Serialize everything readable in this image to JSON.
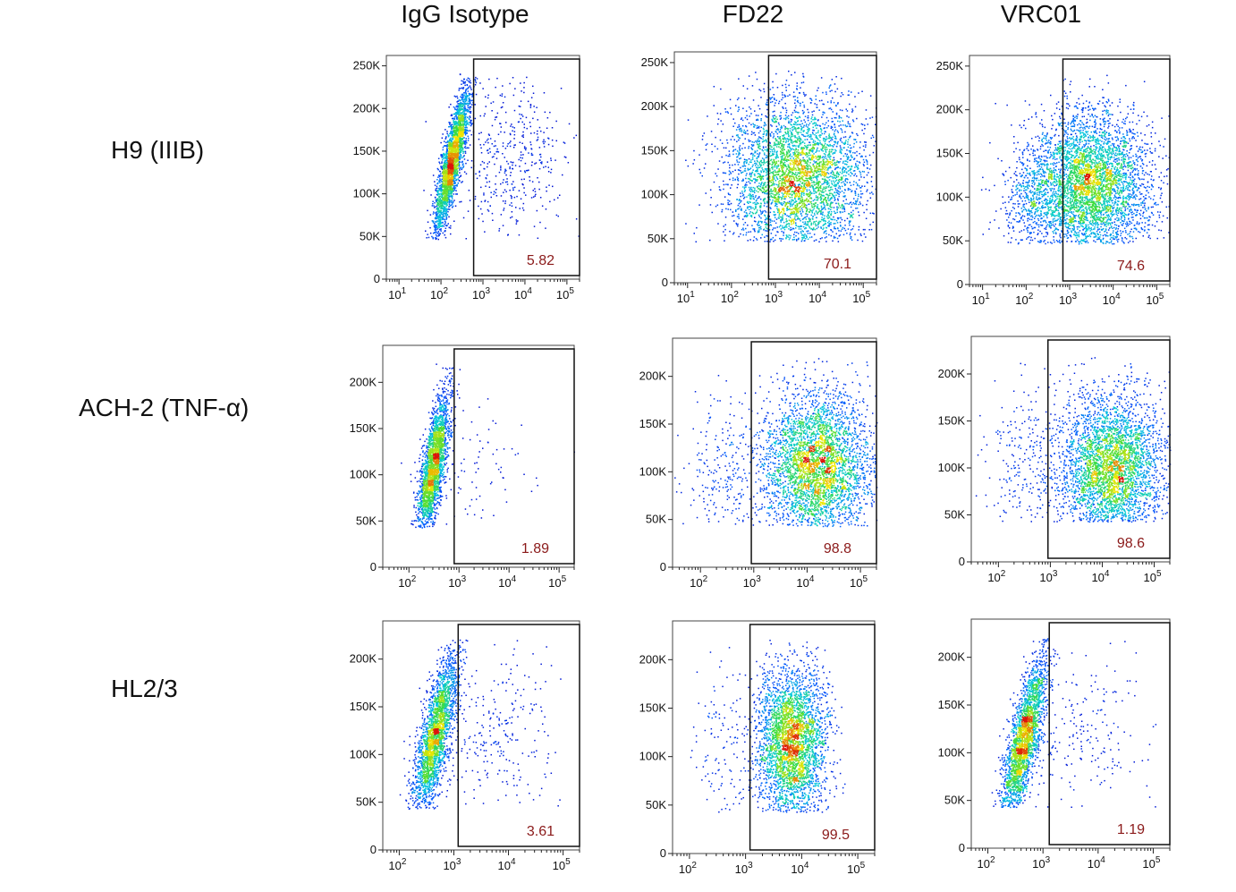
{
  "columns": [
    "IgG Isotype",
    "FD22",
    "VRC01"
  ],
  "rows": [
    "H9 (IIIB)",
    "ACH-2 (TNF-α)",
    "HL2/3"
  ],
  "chart_data": [
    {
      "type": "scatter",
      "row": "H9 (IIIB)",
      "column": "IgG Isotype",
      "x_scale": "log",
      "xlim": [
        5,
        200000
      ],
      "ylim": [
        0,
        262144
      ],
      "y_ticks": [
        {
          "v": 0,
          "label": "0"
        },
        {
          "v": 50000,
          "label": "50K"
        },
        {
          "v": 100000,
          "label": "100K"
        },
        {
          "v": 150000,
          "label": "150K"
        },
        {
          "v": 200000,
          "label": "200K"
        },
        {
          "v": 250000,
          "label": "250K"
        }
      ],
      "x_ticks": [
        {
          "v": 10,
          "label": "10",
          "exp": "1"
        },
        {
          "v": 100,
          "label": "10",
          "exp": "2"
        },
        {
          "v": 1000,
          "label": "10",
          "exp": "3"
        },
        {
          "v": 10000,
          "label": "10",
          "exp": "4"
        },
        {
          "v": 100000,
          "label": "10",
          "exp": "5"
        }
      ],
      "gate": {
        "x_min": 600,
        "percent": "5.82"
      },
      "populations": [
        {
          "x_center": 180,
          "y_center": 140000,
          "x_log_sd": 0.22,
          "y_sd": 45000,
          "tilt": 0.85,
          "n": 2600
        },
        {
          "x_center": 5000,
          "y_center": 140000,
          "x_log_sd": 0.6,
          "y_sd": 50000,
          "tilt": 0,
          "n": 450
        }
      ]
    },
    {
      "type": "scatter",
      "row": "H9 (IIIB)",
      "column": "FD22",
      "x_scale": "log",
      "xlim": [
        5,
        200000
      ],
      "ylim": [
        0,
        262144
      ],
      "y_ticks": [
        {
          "v": 0,
          "label": "0"
        },
        {
          "v": 50000,
          "label": "50K"
        },
        {
          "v": 100000,
          "label": "100K"
        },
        {
          "v": 150000,
          "label": "150K"
        },
        {
          "v": 200000,
          "label": "200K"
        },
        {
          "v": 250000,
          "label": "250K"
        }
      ],
      "x_ticks": [
        {
          "v": 10,
          "label": "10",
          "exp": "1"
        },
        {
          "v": 100,
          "label": "10",
          "exp": "2"
        },
        {
          "v": 1000,
          "label": "10",
          "exp": "3"
        },
        {
          "v": 10000,
          "label": "10",
          "exp": "4"
        },
        {
          "v": 100000,
          "label": "10",
          "exp": "5"
        }
      ],
      "gate": {
        "x_min": 700,
        "percent": "70.1"
      },
      "populations": [
        {
          "x_center": 3000,
          "y_center": 120000,
          "x_log_sd": 0.8,
          "y_sd": 45000,
          "tilt": 0,
          "n": 4200
        }
      ]
    },
    {
      "type": "scatter",
      "row": "H9 (IIIB)",
      "column": "VRC01",
      "x_scale": "log",
      "xlim": [
        5,
        200000
      ],
      "ylim": [
        0,
        262144
      ],
      "y_ticks": [
        {
          "v": 0,
          "label": "0"
        },
        {
          "v": 50000,
          "label": "50K"
        },
        {
          "v": 100000,
          "label": "100K"
        },
        {
          "v": 150000,
          "label": "150K"
        },
        {
          "v": 200000,
          "label": "200K"
        },
        {
          "v": 250000,
          "label": "250K"
        }
      ],
      "x_ticks": [
        {
          "v": 10,
          "label": "10",
          "exp": "1"
        },
        {
          "v": 100,
          "label": "10",
          "exp": "2"
        },
        {
          "v": 1000,
          "label": "10",
          "exp": "3"
        },
        {
          "v": 10000,
          "label": "10",
          "exp": "4"
        },
        {
          "v": 100000,
          "label": "10",
          "exp": "5"
        }
      ],
      "gate": {
        "x_min": 700,
        "percent": "74.6"
      },
      "populations": [
        {
          "x_center": 3000,
          "y_center": 115000,
          "x_log_sd": 0.7,
          "y_sd": 42000,
          "tilt": 0,
          "n": 4200
        },
        {
          "x_center": 150,
          "y_center": 100000,
          "x_log_sd": 0.4,
          "y_sd": 30000,
          "tilt": 0,
          "n": 500
        }
      ]
    },
    {
      "type": "scatter",
      "row": "ACH-2 (TNF-α)",
      "column": "IgG Isotype",
      "x_scale": "log",
      "xlim": [
        30,
        200000
      ],
      "ylim": [
        0,
        240000
      ],
      "y_ticks": [
        {
          "v": 0,
          "label": "0"
        },
        {
          "v": 50000,
          "label": "50K"
        },
        {
          "v": 100000,
          "label": "100K"
        },
        {
          "v": 150000,
          "label": "150K"
        },
        {
          "v": 200000,
          "label": "200K"
        }
      ],
      "x_ticks": [
        {
          "v": 100,
          "label": "10",
          "exp": "2"
        },
        {
          "v": 1000,
          "label": "10",
          "exp": "3"
        },
        {
          "v": 10000,
          "label": "10",
          "exp": "4"
        },
        {
          "v": 100000,
          "label": "10",
          "exp": "5"
        }
      ],
      "gate": {
        "x_min": 800,
        "percent": "1.89"
      },
      "populations": [
        {
          "x_center": 300,
          "y_center": 110000,
          "x_log_sd": 0.16,
          "y_sd": 38000,
          "tilt": 0.7,
          "n": 2400
        },
        {
          "x_center": 3000,
          "y_center": 110000,
          "x_log_sd": 0.6,
          "y_sd": 40000,
          "tilt": 0,
          "n": 80
        }
      ]
    },
    {
      "type": "scatter",
      "row": "ACH-2 (TNF-α)",
      "column": "FD22",
      "x_scale": "log",
      "xlim": [
        30,
        200000
      ],
      "ylim": [
        0,
        240000
      ],
      "y_ticks": [
        {
          "v": 0,
          "label": "0"
        },
        {
          "v": 50000,
          "label": "50K"
        },
        {
          "v": 100000,
          "label": "100K"
        },
        {
          "v": 150000,
          "label": "150K"
        },
        {
          "v": 200000,
          "label": "200K"
        }
      ],
      "x_ticks": [
        {
          "v": 100,
          "label": "10",
          "exp": "2"
        },
        {
          "v": 1000,
          "label": "10",
          "exp": "3"
        },
        {
          "v": 10000,
          "label": "10",
          "exp": "4"
        },
        {
          "v": 100000,
          "label": "10",
          "exp": "5"
        }
      ],
      "gate": {
        "x_min": 900,
        "percent": "98.8"
      },
      "populations": [
        {
          "x_center": 15000,
          "y_center": 105000,
          "x_log_sd": 0.5,
          "y_sd": 40000,
          "tilt": 0,
          "n": 3800
        },
        {
          "x_center": 300,
          "y_center": 100000,
          "x_log_sd": 0.4,
          "y_sd": 45000,
          "tilt": 0,
          "n": 250
        }
      ]
    },
    {
      "type": "scatter",
      "row": "ACH-2 (TNF-α)",
      "column": "VRC01",
      "x_scale": "log",
      "xlim": [
        30,
        200000
      ],
      "ylim": [
        0,
        240000
      ],
      "y_ticks": [
        {
          "v": 0,
          "label": "0"
        },
        {
          "v": 50000,
          "label": "50K"
        },
        {
          "v": 100000,
          "label": "100K"
        },
        {
          "v": 150000,
          "label": "150K"
        },
        {
          "v": 200000,
          "label": "200K"
        }
      ],
      "x_ticks": [
        {
          "v": 100,
          "label": "10",
          "exp": "2"
        },
        {
          "v": 1000,
          "label": "10",
          "exp": "3"
        },
        {
          "v": 10000,
          "label": "10",
          "exp": "4"
        },
        {
          "v": 100000,
          "label": "10",
          "exp": "5"
        }
      ],
      "gate": {
        "x_min": 900,
        "percent": "98.6"
      },
      "populations": [
        {
          "x_center": 15000,
          "y_center": 100000,
          "x_log_sd": 0.5,
          "y_sd": 40000,
          "tilt": 0,
          "n": 3800
        },
        {
          "x_center": 300,
          "y_center": 100000,
          "x_log_sd": 0.4,
          "y_sd": 45000,
          "tilt": 0,
          "n": 250
        }
      ]
    },
    {
      "type": "scatter",
      "row": "HL2/3",
      "column": "IgG Isotype",
      "x_scale": "log",
      "xlim": [
        50,
        200000
      ],
      "ylim": [
        0,
        240000
      ],
      "y_ticks": [
        {
          "v": 0,
          "label": "0"
        },
        {
          "v": 50000,
          "label": "50K"
        },
        {
          "v": 100000,
          "label": "100K"
        },
        {
          "v": 150000,
          "label": "150K"
        },
        {
          "v": 200000,
          "label": "200K"
        }
      ],
      "x_ticks": [
        {
          "v": 100,
          "label": "10",
          "exp": "2"
        },
        {
          "v": 1000,
          "label": "10",
          "exp": "3"
        },
        {
          "v": 10000,
          "label": "10",
          "exp": "4"
        },
        {
          "v": 100000,
          "label": "10",
          "exp": "5"
        }
      ],
      "gate": {
        "x_min": 1200,
        "percent": "3.61"
      },
      "populations": [
        {
          "x_center": 450,
          "y_center": 120000,
          "x_log_sd": 0.2,
          "y_sd": 42000,
          "tilt": 0.75,
          "n": 2500
        },
        {
          "x_center": 5000,
          "y_center": 120000,
          "x_log_sd": 0.6,
          "y_sd": 45000,
          "tilt": 0,
          "n": 300
        }
      ]
    },
    {
      "type": "scatter",
      "row": "HL2/3",
      "column": "FD22",
      "x_scale": "log",
      "xlim": [
        50,
        200000
      ],
      "ylim": [
        0,
        240000
      ],
      "y_ticks": [
        {
          "v": 0,
          "label": "0"
        },
        {
          "v": 50000,
          "label": "50K"
        },
        {
          "v": 100000,
          "label": "100K"
        },
        {
          "v": 150000,
          "label": "150K"
        },
        {
          "v": 200000,
          "label": "200K"
        }
      ],
      "x_ticks": [
        {
          "v": 100,
          "label": "10",
          "exp": "2"
        },
        {
          "v": 1000,
          "label": "10",
          "exp": "3"
        },
        {
          "v": 10000,
          "label": "10",
          "exp": "4"
        },
        {
          "v": 100000,
          "label": "10",
          "exp": "5"
        }
      ],
      "gate": {
        "x_min": 1200,
        "percent": "99.5"
      },
      "populations": [
        {
          "x_center": 6500,
          "y_center": 115000,
          "x_log_sd": 0.32,
          "y_sd": 40000,
          "tilt": 0,
          "n": 3400
        },
        {
          "x_center": 400,
          "y_center": 110000,
          "x_log_sd": 0.3,
          "y_sd": 45000,
          "tilt": 0,
          "n": 120
        }
      ]
    },
    {
      "type": "scatter",
      "row": "HL2/3",
      "column": "VRC01",
      "x_scale": "log",
      "xlim": [
        50,
        200000
      ],
      "ylim": [
        0,
        240000
      ],
      "y_ticks": [
        {
          "v": 0,
          "label": "0"
        },
        {
          "v": 50000,
          "label": "50K"
        },
        {
          "v": 100000,
          "label": "100K"
        },
        {
          "v": 150000,
          "label": "150K"
        },
        {
          "v": 200000,
          "label": "200K"
        }
      ],
      "x_ticks": [
        {
          "v": 100,
          "label": "10",
          "exp": "2"
        },
        {
          "v": 1000,
          "label": "10",
          "exp": "3"
        },
        {
          "v": 10000,
          "label": "10",
          "exp": "4"
        },
        {
          "v": 100000,
          "label": "10",
          "exp": "5"
        }
      ],
      "gate": {
        "x_min": 1300,
        "percent": "1.19"
      },
      "populations": [
        {
          "x_center": 450,
          "y_center": 115000,
          "x_log_sd": 0.2,
          "y_sd": 42000,
          "tilt": 0.75,
          "n": 2500
        },
        {
          "x_center": 5000,
          "y_center": 115000,
          "x_log_sd": 0.6,
          "y_sd": 45000,
          "tilt": 0,
          "n": 220
        }
      ]
    }
  ]
}
